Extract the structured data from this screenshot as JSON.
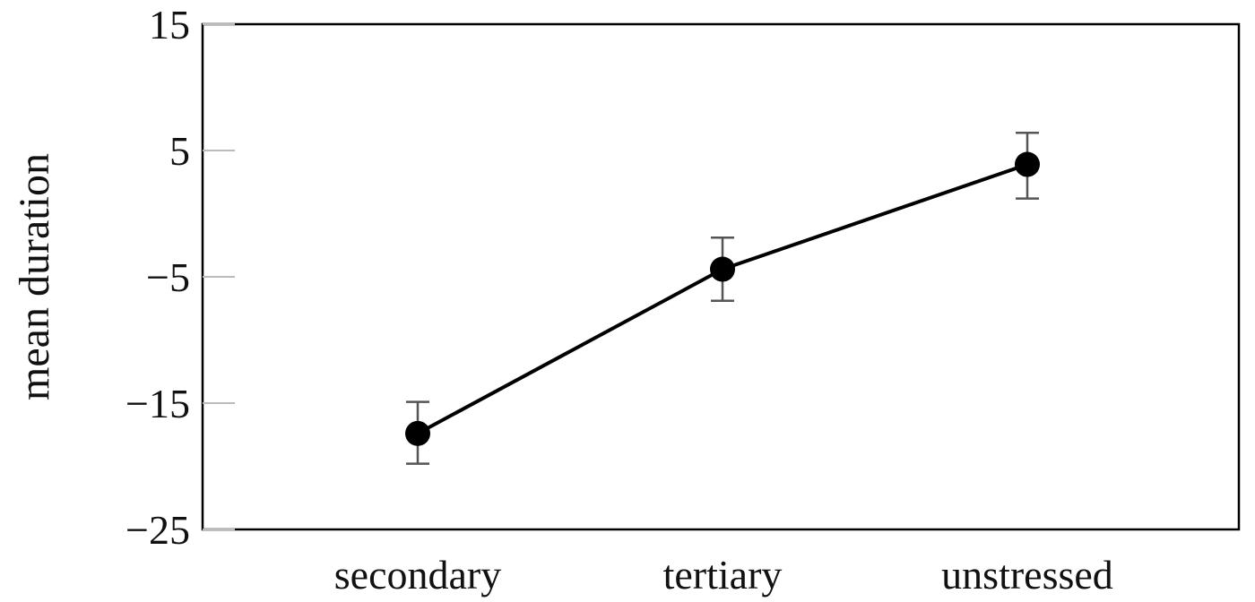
{
  "chart_data": {
    "type": "line",
    "title": "",
    "xlabel": "",
    "ylabel": "mean duration",
    "categories": [
      "secondary",
      "tertiary",
      "unstressed"
    ],
    "series": [
      {
        "values": [
          -17.4,
          -4.4,
          3.9
        ],
        "error_low": [
          -19.8,
          -6.9,
          1.2
        ],
        "error_high": [
          -14.9,
          -1.9,
          6.4
        ]
      }
    ],
    "ylim": [
      -25,
      15
    ],
    "yticks": [
      -25,
      -15,
      -5,
      5,
      15
    ],
    "ytick_labels": [
      "−25",
      "−15",
      "−5",
      "5",
      "15"
    ],
    "grid": false,
    "legend": "none",
    "colors": {
      "line": "#000000",
      "marker": "#000000",
      "error_bar": "#555555",
      "frame": "#000000",
      "tick_mark": "#bbbbbb"
    }
  }
}
